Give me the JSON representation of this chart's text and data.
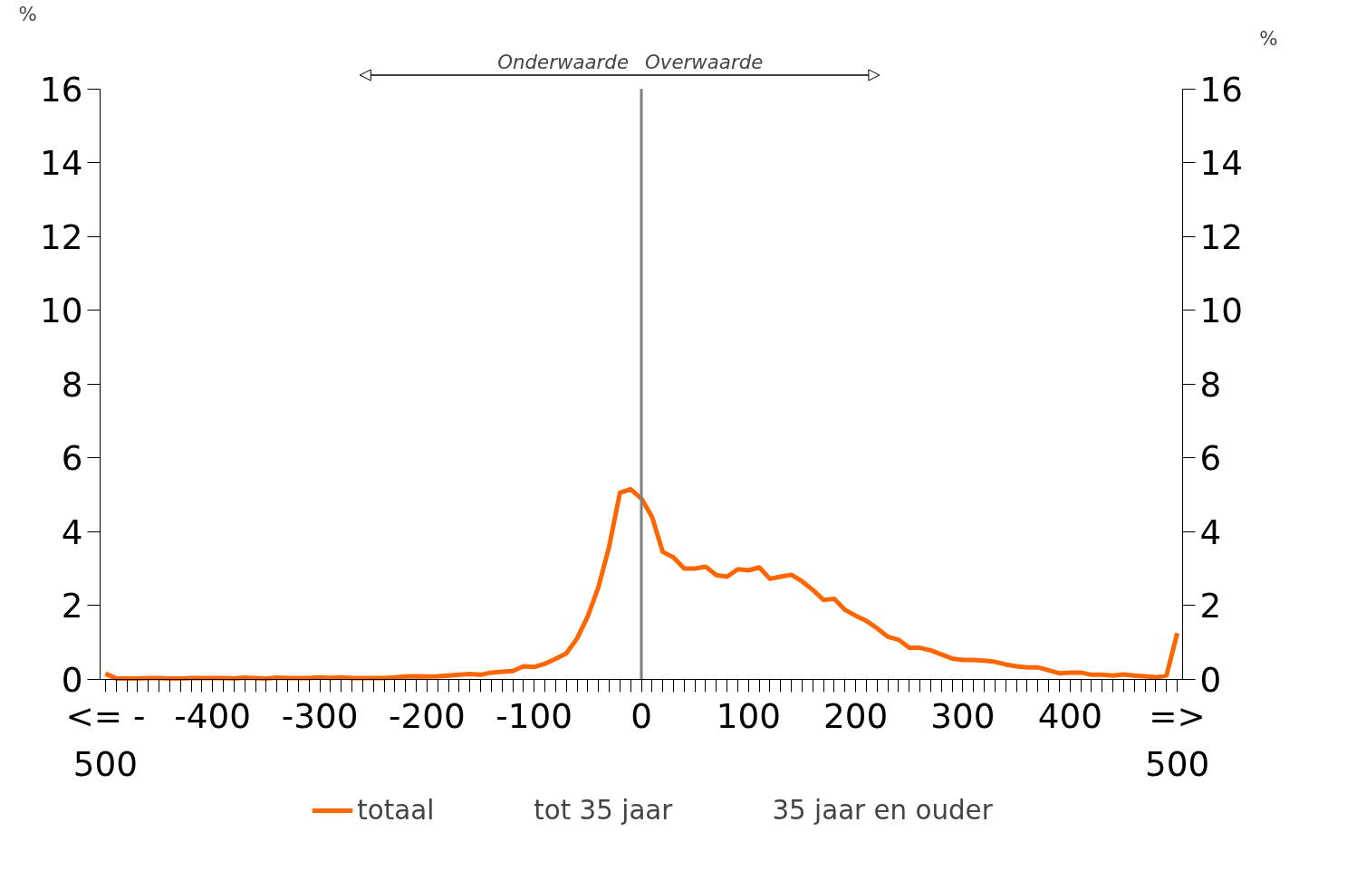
{
  "chart_data": {
    "type": "line",
    "xlim": [
      -505,
      505
    ],
    "ylim": [
      0,
      16
    ],
    "y2lim": [
      0,
      16
    ],
    "yticks": [
      0,
      2,
      4,
      6,
      8,
      10,
      12,
      14,
      16
    ],
    "y2ticks": [
      0,
      2,
      4,
      6,
      8,
      10,
      12,
      14,
      16
    ],
    "ylabel": "%",
    "y2label": "%",
    "xticks": [
      {
        "value": -500,
        "label": "<= -\n500"
      },
      {
        "value": -490,
        "label": null
      },
      {
        "value": -480,
        "label": null
      },
      {
        "value": -470,
        "label": null
      },
      {
        "value": -460,
        "label": null
      },
      {
        "value": -450,
        "label": null
      },
      {
        "value": -440,
        "label": null
      },
      {
        "value": -430,
        "label": null
      },
      {
        "value": -420,
        "label": null
      },
      {
        "value": -410,
        "label": null
      },
      -400,
      {
        "value": -390,
        "label": null
      },
      {
        "value": -380,
        "label": null
      },
      {
        "value": -370,
        "label": null
      },
      {
        "value": -360,
        "label": null
      },
      {
        "value": -350,
        "label": null
      },
      {
        "value": -340,
        "label": null
      },
      {
        "value": -330,
        "label": null
      },
      {
        "value": -320,
        "label": null
      },
      {
        "value": -310,
        "label": null
      },
      -300,
      {
        "value": -290,
        "label": null
      },
      {
        "value": -280,
        "label": null
      },
      {
        "value": -270,
        "label": null
      },
      {
        "value": -260,
        "label": null
      },
      {
        "value": -250,
        "label": null
      },
      {
        "value": -240,
        "label": null
      },
      {
        "value": -230,
        "label": null
      },
      {
        "value": -220,
        "label": null
      },
      {
        "value": -210,
        "label": null
      },
      -200,
      {
        "value": -190,
        "label": null
      },
      {
        "value": -180,
        "label": null
      },
      {
        "value": -170,
        "label": null
      },
      {
        "value": -160,
        "label": null
      },
      {
        "value": -150,
        "label": null
      },
      {
        "value": -140,
        "label": null
      },
      {
        "value": -130,
        "label": null
      },
      {
        "value": -120,
        "label": null
      },
      {
        "value": -110,
        "label": null
      },
      -100,
      {
        "value": -90,
        "label": null
      },
      {
        "value": -80,
        "label": null
      },
      {
        "value": -70,
        "label": null
      },
      {
        "value": -60,
        "label": null
      },
      {
        "value": -50,
        "label": null
      },
      {
        "value": -40,
        "label": null
      },
      {
        "value": -30,
        "label": null
      },
      {
        "value": -20,
        "label": null
      },
      {
        "value": -10,
        "label": null
      },
      0,
      {
        "value": 10,
        "label": null
      },
      {
        "value": 20,
        "label": null
      },
      {
        "value": 30,
        "label": null
      },
      {
        "value": 40,
        "label": null
      },
      {
        "value": 50,
        "label": null
      },
      {
        "value": 60,
        "label": null
      },
      {
        "value": 70,
        "label": null
      },
      {
        "value": 80,
        "label": null
      },
      {
        "value": 90,
        "label": null
      },
      100,
      {
        "value": 110,
        "label": null
      },
      {
        "value": 120,
        "label": null
      },
      {
        "value": 130,
        "label": null
      },
      {
        "value": 140,
        "label": null
      },
      {
        "value": 150,
        "label": null
      },
      {
        "value": 160,
        "label": null
      },
      {
        "value": 170,
        "label": null
      },
      {
        "value": 180,
        "label": null
      },
      {
        "value": 190,
        "label": null
      },
      200,
      {
        "value": 210,
        "label": null
      },
      {
        "value": 220,
        "label": null
      },
      {
        "value": 230,
        "label": null
      },
      {
        "value": 240,
        "label": null
      },
      {
        "value": 250,
        "label": null
      },
      {
        "value": 260,
        "label": null
      },
      {
        "value": 270,
        "label": null
      },
      {
        "value": 280,
        "label": null
      },
      {
        "value": 290,
        "label": null
      },
      300,
      {
        "value": 310,
        "label": null
      },
      {
        "value": 320,
        "label": null
      },
      {
        "value": 330,
        "label": null
      },
      {
        "value": 340,
        "label": null
      },
      {
        "value": 350,
        "label": null
      },
      {
        "value": 360,
        "label": null
      },
      {
        "value": 370,
        "label": null
      },
      {
        "value": 380,
        "label": null
      },
      {
        "value": 390,
        "label": null
      },
      400,
      {
        "value": 410,
        "label": null
      },
      {
        "value": 420,
        "label": null
      },
      {
        "value": 430,
        "label": null
      },
      {
        "value": 440,
        "label": null
      },
      {
        "value": 450,
        "label": null
      },
      {
        "value": 460,
        "label": null
      },
      {
        "value": 470,
        "label": null
      },
      {
        "value": 480,
        "label": null
      },
      {
        "value": 490,
        "label": null
      },
      {
        "value": 500,
        "label": "=>\n500"
      }
    ],
    "x": [
      -500,
      -490,
      -480,
      -470,
      -460,
      -450,
      -440,
      -430,
      -420,
      -410,
      -400,
      -390,
      -380,
      -370,
      -360,
      -350,
      -340,
      -330,
      -320,
      -310,
      -300,
      -290,
      -280,
      -270,
      -260,
      -250,
      -240,
      -230,
      -220,
      -210,
      -200,
      -190,
      -180,
      -170,
      -160,
      -150,
      -140,
      -130,
      -120,
      -110,
      -100,
      -90,
      -80,
      -70,
      -60,
      -50,
      -40,
      -30,
      -20,
      -10,
      0,
      10,
      20,
      30,
      40,
      50,
      60,
      70,
      80,
      90,
      100,
      110,
      120,
      130,
      140,
      150,
      160,
      170,
      180,
      190,
      200,
      210,
      220,
      230,
      240,
      250,
      260,
      270,
      280,
      290,
      300,
      310,
      320,
      330,
      340,
      350,
      360,
      370,
      380,
      390,
      400,
      410,
      420,
      430,
      440,
      450,
      460,
      470,
      480,
      490,
      500
    ],
    "series": [
      {
        "name": "totaal",
        "color": "#ff6600",
        "values": [
          0.15,
          0.02,
          0.02,
          0.02,
          0.03,
          0.03,
          0.02,
          0.02,
          0.03,
          0.03,
          0.03,
          0.03,
          0.02,
          0.04,
          0.03,
          0.02,
          0.04,
          0.03,
          0.03,
          0.03,
          0.05,
          0.03,
          0.05,
          0.03,
          0.03,
          0.03,
          0.03,
          0.05,
          0.07,
          0.08,
          0.07,
          0.08,
          0.1,
          0.12,
          0.14,
          0.12,
          0.18,
          0.2,
          0.22,
          0.35,
          0.33,
          0.42,
          0.55,
          0.7,
          1.1,
          1.7,
          2.5,
          3.6,
          5.05,
          5.15,
          4.9,
          4.4,
          3.45,
          3.3,
          3.0,
          3.0,
          3.05,
          2.82,
          2.78,
          2.98,
          2.95,
          3.03,
          2.72,
          2.78,
          2.83,
          2.65,
          2.42,
          2.15,
          2.18,
          1.88,
          1.72,
          1.58,
          1.38,
          1.15,
          1.07,
          0.85,
          0.85,
          0.78,
          0.67,
          0.56,
          0.52,
          0.52,
          0.5,
          0.47,
          0.4,
          0.35,
          0.32,
          0.32,
          0.24,
          0.16,
          0.18,
          0.18,
          0.12,
          0.12,
          0.1,
          0.13,
          0.1,
          0.08,
          0.05,
          0.1,
          1.25
        ]
      },
      {
        "name": "tot 35 jaar",
        "values": [
          null,
          null,
          null,
          null,
          null,
          null,
          null,
          null,
          null,
          null,
          null,
          null,
          null,
          null,
          null,
          null,
          null,
          null,
          null,
          null,
          null,
          null,
          null,
          null,
          null,
          null,
          null,
          null,
          null,
          null,
          null,
          null,
          null,
          null,
          null,
          null,
          null,
          null,
          null,
          null,
          null,
          null,
          null,
          null,
          null,
          null,
          null,
          null,
          null,
          null,
          null,
          null,
          null,
          null,
          null,
          null,
          null,
          null,
          null,
          null,
          null,
          null,
          null,
          null,
          null,
          null,
          null,
          null,
          null,
          null,
          null,
          null,
          null,
          null,
          null,
          null,
          null,
          null,
          null,
          null,
          null,
          null,
          null,
          null,
          null,
          null,
          null,
          null,
          null,
          null,
          null,
          null,
          null,
          null,
          null,
          null,
          null,
          null,
          null,
          null,
          null
        ]
      },
      {
        "name": "35 jaar en ouder",
        "values": [
          null,
          null,
          null,
          null,
          null,
          null,
          null,
          null,
          null,
          null,
          null,
          null,
          null,
          null,
          null,
          null,
          null,
          null,
          null,
          null,
          null,
          null,
          null,
          null,
          null,
          null,
          null,
          null,
          null,
          null,
          null,
          null,
          null,
          null,
          null,
          null,
          null,
          null,
          null,
          null,
          null,
          null,
          null,
          null,
          null,
          null,
          null,
          null,
          null,
          null,
          null,
          null,
          null,
          null,
          null,
          null,
          null,
          null,
          null,
          null,
          null,
          null,
          null,
          null,
          null,
          null,
          null,
          null,
          null,
          null,
          null,
          null,
          null,
          null,
          null,
          null,
          null,
          null,
          null,
          null,
          null,
          null,
          null,
          null,
          null,
          null,
          null,
          null,
          null,
          null,
          null,
          null,
          null,
          null,
          null,
          null,
          null,
          null,
          null,
          null,
          null
        ]
      }
    ],
    "ref_lines": [
      {
        "axis": "x",
        "value": 0,
        "color": "#808080"
      }
    ],
    "annotations": [
      "Onderwaarde",
      "Overwaarde"
    ],
    "legend": "bottom",
    "grid": false,
    "marker": "none",
    "line_style": "solid"
  }
}
